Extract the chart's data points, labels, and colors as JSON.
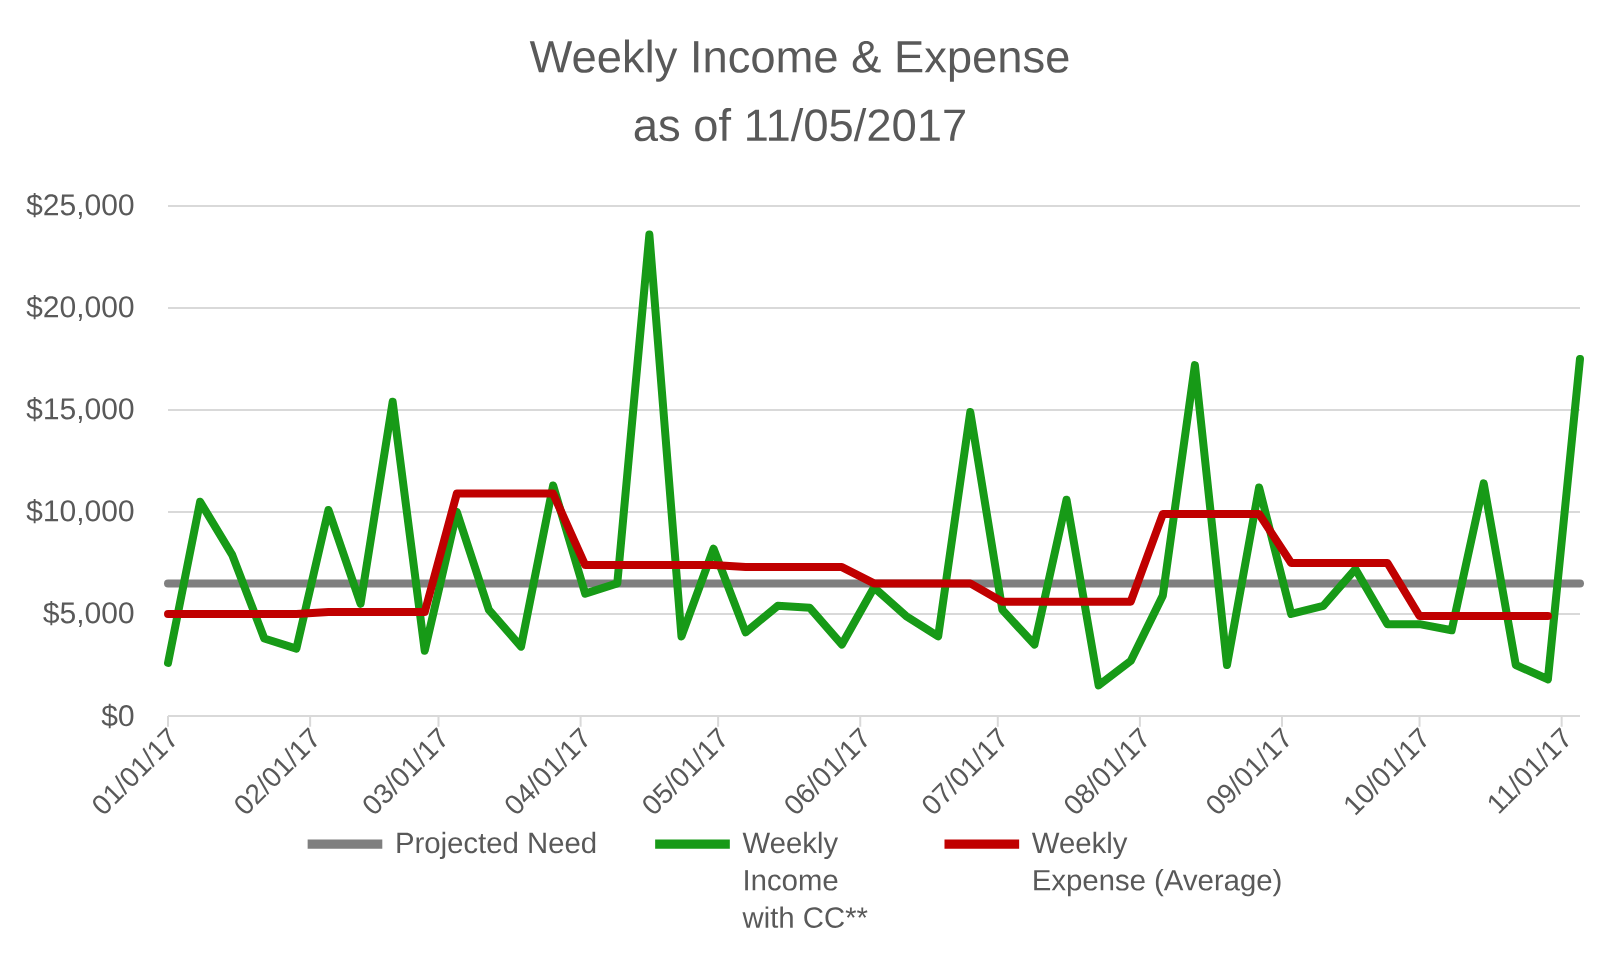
{
  "chart_data": {
    "type": "line",
    "title": "Weekly Income & Expense",
    "subtitle": "as of 11/05/2017",
    "x": [
      "2017-01-01",
      "2017-01-08",
      "2017-01-15",
      "2017-01-22",
      "2017-01-29",
      "2017-02-05",
      "2017-02-12",
      "2017-02-19",
      "2017-02-26",
      "2017-03-05",
      "2017-03-12",
      "2017-03-19",
      "2017-03-26",
      "2017-04-02",
      "2017-04-09",
      "2017-04-16",
      "2017-04-23",
      "2017-04-30",
      "2017-05-07",
      "2017-05-14",
      "2017-05-21",
      "2017-05-28",
      "2017-06-04",
      "2017-06-11",
      "2017-06-18",
      "2017-06-25",
      "2017-07-02",
      "2017-07-09",
      "2017-07-16",
      "2017-07-23",
      "2017-07-30",
      "2017-08-06",
      "2017-08-13",
      "2017-08-20",
      "2017-08-27",
      "2017-09-03",
      "2017-09-10",
      "2017-09-17",
      "2017-09-24",
      "2017-10-01",
      "2017-10-08",
      "2017-10-15",
      "2017-10-22",
      "2017-10-29",
      "2017-11-05"
    ],
    "series": [
      {
        "name": "Projected Need",
        "color": "#7f7f7f",
        "values": [
          6500,
          6500,
          6500,
          6500,
          6500,
          6500,
          6500,
          6500,
          6500,
          6500,
          6500,
          6500,
          6500,
          6500,
          6500,
          6500,
          6500,
          6500,
          6500,
          6500,
          6500,
          6500,
          6500,
          6500,
          6500,
          6500,
          6500,
          6500,
          6500,
          6500,
          6500,
          6500,
          6500,
          6500,
          6500,
          6500,
          6500,
          6500,
          6500,
          6500,
          6500,
          6500,
          6500,
          6500,
          6500
        ]
      },
      {
        "name": "Weekly Income with CC**",
        "color": "#179a17",
        "values": [
          2600,
          10500,
          7900,
          3800,
          3300,
          10100,
          5500,
          15400,
          3200,
          10000,
          5200,
          3400,
          11300,
          6000,
          6500,
          23600,
          3900,
          8200,
          4100,
          5400,
          5300,
          3500,
          6300,
          4900,
          3900,
          14900,
          5200,
          3500,
          10600,
          1500,
          2700,
          5900,
          17200,
          2500,
          11200,
          5000,
          5400,
          7200,
          4500,
          4500,
          4200,
          11400,
          2500,
          1800,
          17500
        ]
      },
      {
        "name": "Weekly Expense (Average)",
        "color": "#c00000",
        "values": [
          5000,
          5000,
          5000,
          5000,
          5000,
          5100,
          5100,
          5100,
          5100,
          10900,
          10900,
          10900,
          10900,
          7400,
          7400,
          7400,
          7400,
          7400,
          7300,
          7300,
          7300,
          7300,
          6500,
          6500,
          6500,
          6500,
          5600,
          5600,
          5600,
          5600,
          5600,
          9900,
          9900,
          9900,
          9900,
          7500,
          7500,
          7500,
          7500,
          4900,
          4900,
          4900,
          4900,
          4900,
          null
        ]
      }
    ],
    "xlim": [
      "2017-01-01",
      "2017-11-05"
    ],
    "xticks": [
      {
        "value": "2017-01-01",
        "label": "01/01/17"
      },
      {
        "value": "2017-02-01",
        "label": "02/01/17"
      },
      {
        "value": "2017-03-01",
        "label": "03/01/17"
      },
      {
        "value": "2017-04-01",
        "label": "04/01/17"
      },
      {
        "value": "2017-05-01",
        "label": "05/01/17"
      },
      {
        "value": "2017-06-01",
        "label": "06/01/17"
      },
      {
        "value": "2017-07-01",
        "label": "07/01/17"
      },
      {
        "value": "2017-08-01",
        "label": "08/01/17"
      },
      {
        "value": "2017-09-01",
        "label": "09/01/17"
      },
      {
        "value": "2017-10-01",
        "label": "10/01/17"
      },
      {
        "value": "2017-11-01",
        "label": "11/01/17"
      }
    ],
    "ylim": [
      0,
      25000
    ],
    "yticks": [
      {
        "value": 0,
        "label": "$0"
      },
      {
        "value": 5000,
        "label": "$5,000"
      },
      {
        "value": 10000,
        "label": "$10,000"
      },
      {
        "value": 15000,
        "label": "$15,000"
      },
      {
        "value": 20000,
        "label": "$20,000"
      },
      {
        "value": 25000,
        "label": "$25,000"
      }
    ],
    "grid": "y",
    "legend": "bottom"
  }
}
